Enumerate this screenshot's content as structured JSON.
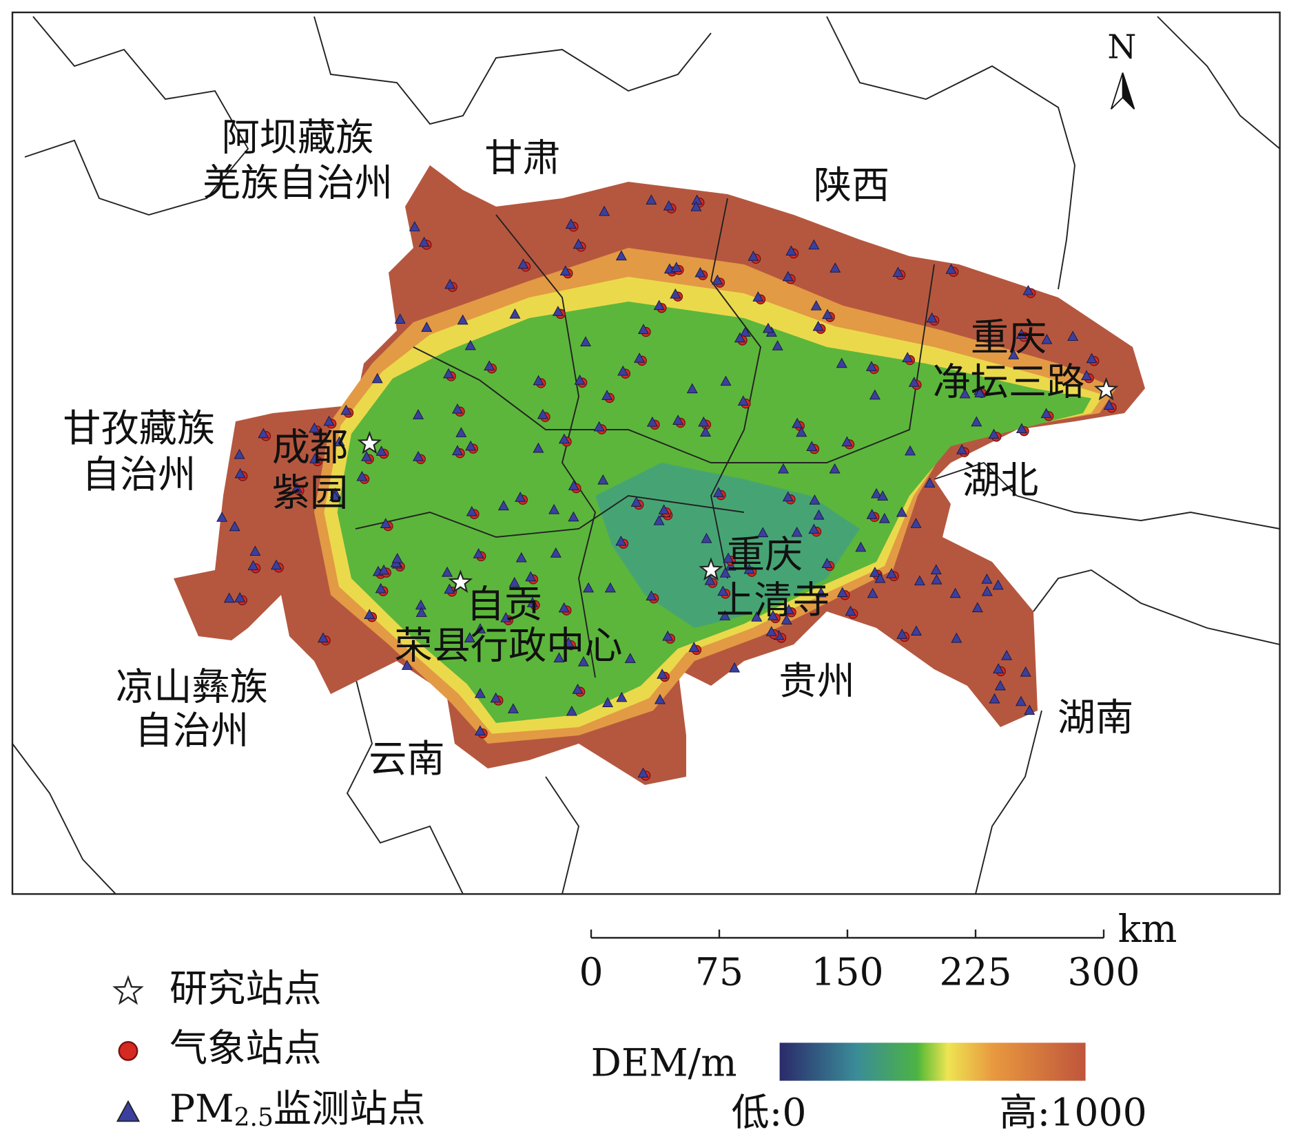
{
  "map": {
    "north": "N",
    "regions": [
      {
        "lines": [
          "阿坝藏族",
          "羌族自治州"
        ]
      },
      {
        "lines": [
          "甘肃"
        ]
      },
      {
        "lines": [
          "陕西"
        ]
      },
      {
        "lines": [
          "甘孜藏族",
          "自治州"
        ]
      },
      {
        "lines": [
          "湖北"
        ]
      },
      {
        "lines": [
          "贵州"
        ]
      },
      {
        "lines": [
          "湖南"
        ]
      },
      {
        "lines": [
          "凉山彝族",
          "自治州"
        ]
      },
      {
        "lines": [
          "云南"
        ]
      }
    ],
    "sites": [
      {
        "lines": [
          "成都",
          "紫园"
        ]
      },
      {
        "lines": [
          "自贡",
          "荣县行政中心"
        ]
      },
      {
        "lines": [
          "重庆",
          "上清寺"
        ]
      },
      {
        "lines": [
          "重庆",
          "净坛三路"
        ]
      }
    ]
  },
  "scale_bar": {
    "unit": "km",
    "ticks": [
      0,
      75,
      150,
      225,
      300
    ]
  },
  "legend": {
    "items": [
      {
        "label": "研究站点"
      },
      {
        "label": "气象站点"
      },
      {
        "label": "PM",
        "subscript": "2.5",
        "suffix": "监测站点"
      }
    ]
  },
  "colorbar": {
    "title": "DEM/m",
    "low": "低:0",
    "high": "高:1000"
  }
}
